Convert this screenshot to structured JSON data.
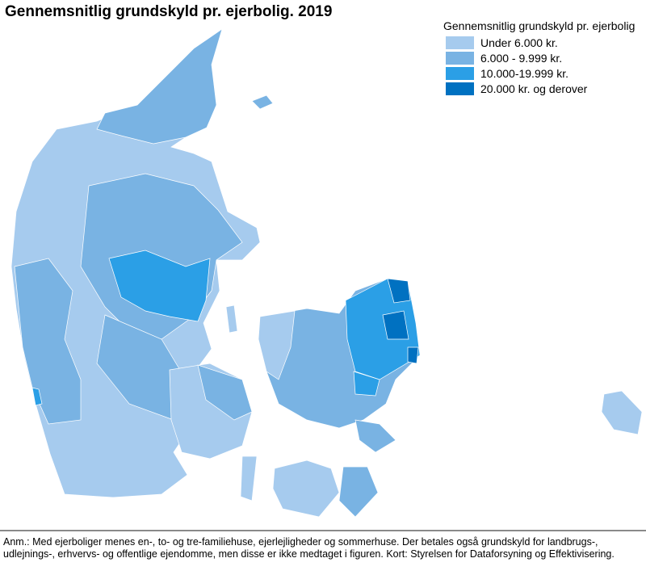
{
  "title": "Gennemsnitlig grundskyld pr. ejerbolig. 2019",
  "legend": {
    "title": "Gennemsnitlig grundskyld pr. ejerbolig",
    "classes": [
      {
        "label": "Under 6.000 kr.",
        "color": "#a6cbee"
      },
      {
        "label": "6.000 - 9.999 kr.",
        "color": "#79b3e3"
      },
      {
        "label": "10.000-19.999 kr.",
        "color": "#2b9fe6"
      },
      {
        "label": "20.000 kr. og derover",
        "color": "#0071c1"
      }
    ]
  },
  "note": "Anm.: Med ejerboliger menes en-, to- og tre-familiehuse, ejerlejligheder og sommerhuse. Der betales også grundskyld for landbrugs-, udlejnings-, erhvervs- og offentlige ejendomme, men disse er ikke medtaget i figuren. Kort: Styrelsen for Dataforsyning og Effektivisering."
}
